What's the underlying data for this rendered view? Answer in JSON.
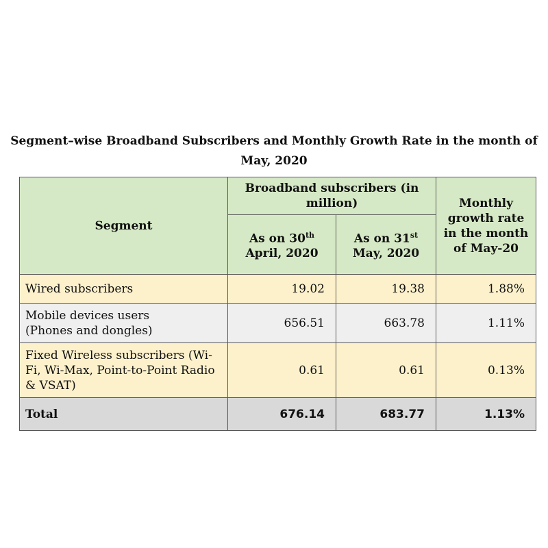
{
  "title": "Segment–wise Broadband Subscribers and Monthly Growth Rate in the month of May, 2020",
  "table": {
    "header": {
      "segment": "Segment",
      "group": "Broadband subscribers (in million)",
      "growth": "Monthly growth rate in the month of May-20",
      "sub_columns": [
        {
          "line1": "As on 30",
          "sup": "th",
          "line2": "April, 2020"
        },
        {
          "line1": "As on 31",
          "sup": "st",
          "line2": "May, 2020"
        }
      ]
    },
    "rows": [
      [
        "Wired subscribers",
        "19.02",
        "19.38",
        "1.88%"
      ],
      [
        "Mobile devices users (Phones and dongles)",
        "656.51",
        "663.78",
        "1.11%"
      ],
      [
        "Fixed Wireless subscribers (Wi-Fi, Wi-Max, Point-to-Point Radio & VSAT)",
        "0.61",
        "0.61",
        "0.13%"
      ]
    ],
    "total": [
      "Total",
      "676.14",
      "683.77",
      "1.13%"
    ]
  }
}
